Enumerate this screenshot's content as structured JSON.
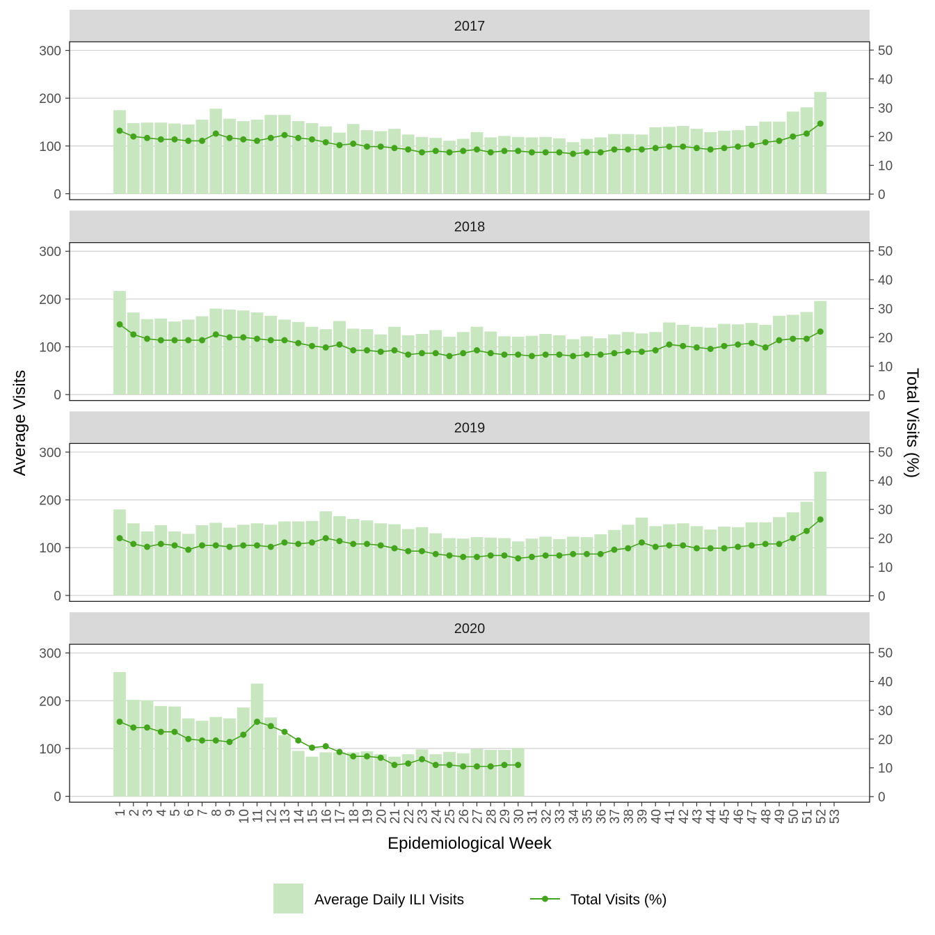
{
  "chart_data": {
    "type": "bar",
    "xlabel": "Epidemiological Week",
    "ylabel": "Average Visits",
    "ylabel_right": "Total Visits (%)",
    "ylim": [
      0,
      300
    ],
    "yticks": [
      0,
      100,
      200,
      300
    ],
    "ylim_right": [
      0,
      50
    ],
    "yticks_right": [
      0,
      10,
      20,
      30,
      40,
      50
    ],
    "weeks": [
      1,
      2,
      3,
      4,
      5,
      6,
      7,
      8,
      9,
      10,
      11,
      12,
      13,
      14,
      15,
      16,
      17,
      18,
      19,
      20,
      21,
      22,
      23,
      24,
      25,
      26,
      27,
      28,
      29,
      30,
      31,
      32,
      33,
      34,
      35,
      36,
      37,
      38,
      39,
      40,
      41,
      42,
      43,
      44,
      45,
      46,
      47,
      48,
      49,
      50,
      51,
      52,
      53
    ],
    "grid": true,
    "legend_position": "bottom",
    "legend": {
      "bar_label": "Average Daily ILI Visits",
      "line_label": "Total Visits (%)"
    },
    "colors": {
      "bar": "#c8e6bf",
      "line": "#44a31c",
      "strip": "#d9d9d9",
      "grid": "#d3d3d3"
    },
    "panels": [
      {
        "label": "2017",
        "bars": [
          175,
          148,
          149,
          149,
          147,
          145,
          155,
          178,
          157,
          152,
          155,
          165,
          165,
          152,
          148,
          141,
          128,
          146,
          133,
          131,
          136,
          124,
          119,
          117,
          111,
          115,
          129,
          118,
          121,
          119,
          118,
          119,
          116,
          108,
          115,
          118,
          125,
          125,
          124,
          139,
          140,
          142,
          136,
          129,
          132,
          133,
          142,
          151,
          151,
          172,
          181,
          213
        ],
        "pct": [
          22,
          20,
          19.5,
          19,
          19,
          18.5,
          18.5,
          21,
          19.5,
          19,
          18.5,
          19.5,
          20.5,
          19.5,
          19,
          18,
          17,
          17.5,
          16.5,
          16.5,
          16,
          15.5,
          14.5,
          15,
          14.5,
          15,
          15.5,
          14.5,
          15,
          15,
          14.5,
          14.5,
          14.5,
          14,
          14.5,
          14.5,
          15.5,
          15.5,
          15.5,
          16,
          16.5,
          16.5,
          16,
          15.5,
          16,
          16.5,
          17,
          18,
          18.5,
          20,
          21,
          24.5
        ]
      },
      {
        "label": "2018",
        "bars": [
          217,
          172,
          158,
          159,
          153,
          157,
          164,
          180,
          178,
          176,
          172,
          165,
          157,
          152,
          142,
          137,
          154,
          138,
          137,
          126,
          142,
          124,
          127,
          135,
          121,
          131,
          142,
          132,
          122,
          121,
          123,
          127,
          124,
          116,
          122,
          118,
          126,
          131,
          128,
          131,
          151,
          146,
          142,
          140,
          148,
          147,
          150,
          146,
          165,
          167,
          173,
          196
        ],
        "pct": [
          24.5,
          21,
          19.5,
          19,
          19,
          19,
          19,
          21,
          20,
          20,
          19.5,
          19,
          19,
          18,
          17,
          16.5,
          17.5,
          15.5,
          15.5,
          15,
          15.5,
          14,
          14.5,
          14.5,
          13.5,
          14.5,
          15.5,
          14.5,
          14,
          14,
          13.5,
          14,
          14,
          13.5,
          14,
          14,
          14.5,
          15,
          15,
          15.5,
          17.5,
          17,
          16.5,
          16,
          17,
          17.5,
          18,
          16.5,
          19,
          19.5,
          19.5,
          22
        ]
      },
      {
        "label": "2019",
        "bars": [
          180,
          151,
          134,
          147,
          134,
          129,
          147,
          152,
          142,
          148,
          151,
          148,
          155,
          155,
          156,
          176,
          166,
          160,
          157,
          151,
          149,
          139,
          143,
          130,
          120,
          119,
          122,
          121,
          120,
          113,
          119,
          123,
          118,
          123,
          122,
          128,
          137,
          148,
          163,
          145,
          149,
          151,
          145,
          138,
          144,
          143,
          153,
          153,
          164,
          174,
          196,
          259
        ],
        "pct": [
          20,
          18,
          17,
          18,
          17.5,
          16,
          17.5,
          17.5,
          17,
          17.5,
          17.5,
          17,
          18.5,
          18,
          18.5,
          20,
          19,
          18,
          18,
          17.5,
          16.5,
          15.5,
          15.5,
          14.5,
          14,
          13.5,
          13.5,
          14,
          14,
          13,
          13.5,
          14,
          14,
          14.5,
          14.5,
          14.5,
          16,
          16.5,
          18.5,
          17,
          17.5,
          17.5,
          16.5,
          16.5,
          16.5,
          17,
          17.5,
          18,
          18,
          20,
          22.5,
          26.5
        ]
      },
      {
        "label": "2020",
        "bars": [
          260,
          202,
          201,
          189,
          188,
          163,
          158,
          166,
          163,
          186,
          236,
          165,
          128,
          95,
          83,
          92,
          92,
          92,
          94,
          88,
          83,
          88,
          98,
          88,
          93,
          90,
          99,
          97,
          97,
          101
        ],
        "pct": [
          26,
          24,
          24,
          22.5,
          22.5,
          20,
          19.5,
          19.5,
          19,
          21.5,
          26,
          24.5,
          22.5,
          19.5,
          17,
          17.5,
          15.5,
          14,
          14,
          13.5,
          11,
          11.5,
          13,
          11,
          11,
          10.5,
          10.5,
          10.5,
          11,
          11
        ]
      }
    ]
  }
}
